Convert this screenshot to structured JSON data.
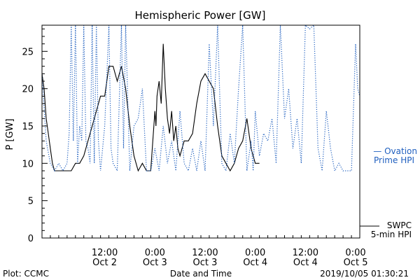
{
  "chart_data": {
    "type": "line",
    "title": "Hemispheric Power [GW]",
    "ylabel": "P [GW]",
    "xlabel": "Date and Time",
    "ylim": [
      0,
      28.5
    ],
    "yticks": [
      0,
      5,
      10,
      15,
      20,
      25
    ],
    "xlim": [
      "2019-10-01T21:00",
      "2019-10-05T01:00"
    ],
    "xticks": [
      {
        "x": "2019-10-02T12:00",
        "time": "12:00",
        "date": "Oct 2"
      },
      {
        "x": "2019-10-03T00:00",
        "time": "0:00",
        "date": "Oct 3"
      },
      {
        "x": "2019-10-03T12:00",
        "time": "12:00",
        "date": "Oct 3"
      },
      {
        "x": "2019-10-04T00:00",
        "time": "0:00",
        "date": "Oct 4"
      },
      {
        "x": "2019-10-04T12:00",
        "time": "12:00",
        "date": "Oct 4"
      },
      {
        "x": "2019-10-05T00:00",
        "time": "0:00",
        "date": "Oct 5"
      }
    ],
    "series": [
      {
        "name": "SWPC 5-min HPI",
        "style": "solid",
        "color": "#000000",
        "points": [
          [
            "2019-10-01T21:00",
            22
          ],
          [
            "2019-10-01T21:30",
            20
          ],
          [
            "2019-10-01T22:00",
            16
          ],
          [
            "2019-10-01T22:30",
            14
          ],
          [
            "2019-10-01T23:00",
            12
          ],
          [
            "2019-10-01T23:30",
            10
          ],
          [
            "2019-10-02T00:00",
            9
          ],
          [
            "2019-10-02T02:00",
            9
          ],
          [
            "2019-10-02T04:00",
            9
          ],
          [
            "2019-10-02T05:00",
            10
          ],
          [
            "2019-10-02T06:00",
            10
          ],
          [
            "2019-10-02T07:00",
            11
          ],
          [
            "2019-10-02T08:00",
            13
          ],
          [
            "2019-10-02T09:00",
            15
          ],
          [
            "2019-10-02T10:00",
            17
          ],
          [
            "2019-10-02T11:00",
            19
          ],
          [
            "2019-10-02T12:00",
            19
          ],
          [
            "2019-10-02T12:30",
            21
          ],
          [
            "2019-10-02T13:00",
            23
          ],
          [
            "2019-10-02T14:00",
            23
          ],
          [
            "2019-10-02T15:00",
            21
          ],
          [
            "2019-10-02T16:00",
            23
          ],
          [
            "2019-10-02T17:00",
            20
          ],
          [
            "2019-10-02T18:00",
            15
          ],
          [
            "2019-10-02T19:00",
            11
          ],
          [
            "2019-10-02T20:00",
            9
          ],
          [
            "2019-10-02T21:00",
            10
          ],
          [
            "2019-10-02T22:00",
            9
          ],
          [
            "2019-10-02T23:00",
            9
          ],
          [
            "2019-10-02T23:30",
            13
          ],
          [
            "2019-10-03T00:00",
            17
          ],
          [
            "2019-10-03T00:15",
            15
          ],
          [
            "2019-10-03T00:30",
            19
          ],
          [
            "2019-10-03T01:00",
            21
          ],
          [
            "2019-10-03T01:30",
            18
          ],
          [
            "2019-10-03T02:00",
            26
          ],
          [
            "2019-10-03T02:30",
            20
          ],
          [
            "2019-10-03T03:00",
            16
          ],
          [
            "2019-10-03T03:30",
            14
          ],
          [
            "2019-10-03T04:00",
            17
          ],
          [
            "2019-10-03T04:30",
            13
          ],
          [
            "2019-10-03T05:00",
            15
          ],
          [
            "2019-10-03T05:30",
            12
          ],
          [
            "2019-10-03T06:00",
            11
          ],
          [
            "2019-10-03T07:00",
            13
          ],
          [
            "2019-10-03T08:00",
            13
          ],
          [
            "2019-10-03T09:00",
            14
          ],
          [
            "2019-10-03T10:00",
            18
          ],
          [
            "2019-10-03T11:00",
            21
          ],
          [
            "2019-10-03T12:00",
            22
          ],
          [
            "2019-10-03T13:00",
            21
          ],
          [
            "2019-10-03T14:00",
            20
          ],
          [
            "2019-10-03T15:00",
            15
          ],
          [
            "2019-10-03T16:00",
            11
          ],
          [
            "2019-10-03T17:00",
            10
          ],
          [
            "2019-10-03T18:00",
            9
          ],
          [
            "2019-10-03T19:00",
            10
          ],
          [
            "2019-10-03T20:00",
            12
          ],
          [
            "2019-10-03T21:00",
            13
          ],
          [
            "2019-10-03T22:00",
            16
          ],
          [
            "2019-10-03T23:00",
            12
          ],
          [
            "2019-10-04T00:00",
            10
          ],
          [
            "2019-10-04T01:00",
            10
          ]
        ]
      },
      {
        "name": "Ovation Prime HPI",
        "style": "dotted",
        "color": "#1f5fbf",
        "points": [
          [
            "2019-10-01T21:00",
            22
          ],
          [
            "2019-10-01T22:00",
            13
          ],
          [
            "2019-10-01T23:00",
            10
          ],
          [
            "2019-10-02T00:00",
            9
          ],
          [
            "2019-10-02T01:00",
            10
          ],
          [
            "2019-10-02T02:00",
            9
          ],
          [
            "2019-10-02T03:00",
            10
          ],
          [
            "2019-10-02T03:30",
            14
          ],
          [
            "2019-10-02T04:00",
            29
          ],
          [
            "2019-10-02T04:30",
            13
          ],
          [
            "2019-10-02T05:00",
            29
          ],
          [
            "2019-10-02T05:30",
            10
          ],
          [
            "2019-10-02T06:00",
            15
          ],
          [
            "2019-10-02T06:30",
            13
          ],
          [
            "2019-10-02T07:00",
            29
          ],
          [
            "2019-10-02T07:30",
            13
          ],
          [
            "2019-10-02T08:00",
            12
          ],
          [
            "2019-10-02T08:30",
            10
          ],
          [
            "2019-10-02T09:00",
            29
          ],
          [
            "2019-10-02T09:30",
            10
          ],
          [
            "2019-10-02T10:00",
            29
          ],
          [
            "2019-10-02T10:30",
            13
          ],
          [
            "2019-10-02T11:00",
            9
          ],
          [
            "2019-10-02T12:00",
            15
          ],
          [
            "2019-10-02T13:00",
            29
          ],
          [
            "2019-10-02T13:30",
            12
          ],
          [
            "2019-10-02T14:00",
            10
          ],
          [
            "2019-10-02T15:00",
            9
          ],
          [
            "2019-10-02T16:00",
            29
          ],
          [
            "2019-10-02T16:30",
            12
          ],
          [
            "2019-10-02T17:00",
            29
          ],
          [
            "2019-10-02T18:00",
            9
          ],
          [
            "2019-10-02T19:00",
            15
          ],
          [
            "2019-10-02T20:00",
            16
          ],
          [
            "2019-10-02T21:00",
            20
          ],
          [
            "2019-10-02T22:00",
            9
          ],
          [
            "2019-10-02T23:00",
            9
          ],
          [
            "2019-10-03T00:00",
            12
          ],
          [
            "2019-10-03T01:00",
            9
          ],
          [
            "2019-10-03T02:00",
            15
          ],
          [
            "2019-10-03T03:00",
            10
          ],
          [
            "2019-10-03T04:00",
            13
          ],
          [
            "2019-10-03T05:00",
            9
          ],
          [
            "2019-10-03T06:00",
            17
          ],
          [
            "2019-10-03T07:00",
            10
          ],
          [
            "2019-10-03T08:00",
            9
          ],
          [
            "2019-10-03T09:00",
            12
          ],
          [
            "2019-10-03T10:00",
            9
          ],
          [
            "2019-10-03T11:00",
            13
          ],
          [
            "2019-10-03T12:00",
            9
          ],
          [
            "2019-10-03T13:00",
            26
          ],
          [
            "2019-10-03T14:00",
            15
          ],
          [
            "2019-10-03T15:00",
            29
          ],
          [
            "2019-10-03T16:00",
            10
          ],
          [
            "2019-10-03T17:00",
            9
          ],
          [
            "2019-10-03T18:00",
            14
          ],
          [
            "2019-10-03T19:00",
            10
          ],
          [
            "2019-10-03T20:00",
            20
          ],
          [
            "2019-10-03T21:00",
            29
          ],
          [
            "2019-10-03T22:00",
            9
          ],
          [
            "2019-10-03T23:00",
            13
          ],
          [
            "2019-10-03T23:30",
            9
          ],
          [
            "2019-10-04T00:00",
            17
          ],
          [
            "2019-10-04T00:30",
            14
          ],
          [
            "2019-10-04T01:00",
            11
          ],
          [
            "2019-10-04T02:00",
            14
          ],
          [
            "2019-10-04T03:00",
            13
          ],
          [
            "2019-10-04T04:00",
            16
          ],
          [
            "2019-10-04T05:00",
            10
          ],
          [
            "2019-10-04T06:00",
            29
          ],
          [
            "2019-10-04T07:00",
            16
          ],
          [
            "2019-10-04T08:00",
            20
          ],
          [
            "2019-10-04T09:00",
            12
          ],
          [
            "2019-10-04T10:00",
            16
          ],
          [
            "2019-10-04T11:00",
            10
          ],
          [
            "2019-10-04T12:00",
            29
          ],
          [
            "2019-10-04T13:00",
            28
          ],
          [
            "2019-10-04T14:00",
            29
          ],
          [
            "2019-10-04T15:00",
            12
          ],
          [
            "2019-10-04T16:00",
            9
          ],
          [
            "2019-10-04T17:00",
            17
          ],
          [
            "2019-10-04T18:00",
            12
          ],
          [
            "2019-10-04T19:00",
            9
          ],
          [
            "2019-10-04T20:00",
            10
          ],
          [
            "2019-10-04T21:00",
            9
          ],
          [
            "2019-10-04T22:00",
            9
          ],
          [
            "2019-10-04T23:00",
            9
          ],
          [
            "2019-10-05T00:00",
            26
          ],
          [
            "2019-10-05T00:30",
            20
          ],
          [
            "2019-10-05T01:00",
            19
          ]
        ]
      }
    ],
    "legend": [
      {
        "lines": [
          "— Ovation",
          "Prime HPI"
        ],
        "color": "#1f5fbf"
      },
      {
        "lines": [
          "SWPC",
          "5-min HPI"
        ],
        "color": "#000000"
      }
    ]
  },
  "footer": {
    "left": "Plot: CCMC",
    "right": "2019/10/05 01:30:21"
  }
}
